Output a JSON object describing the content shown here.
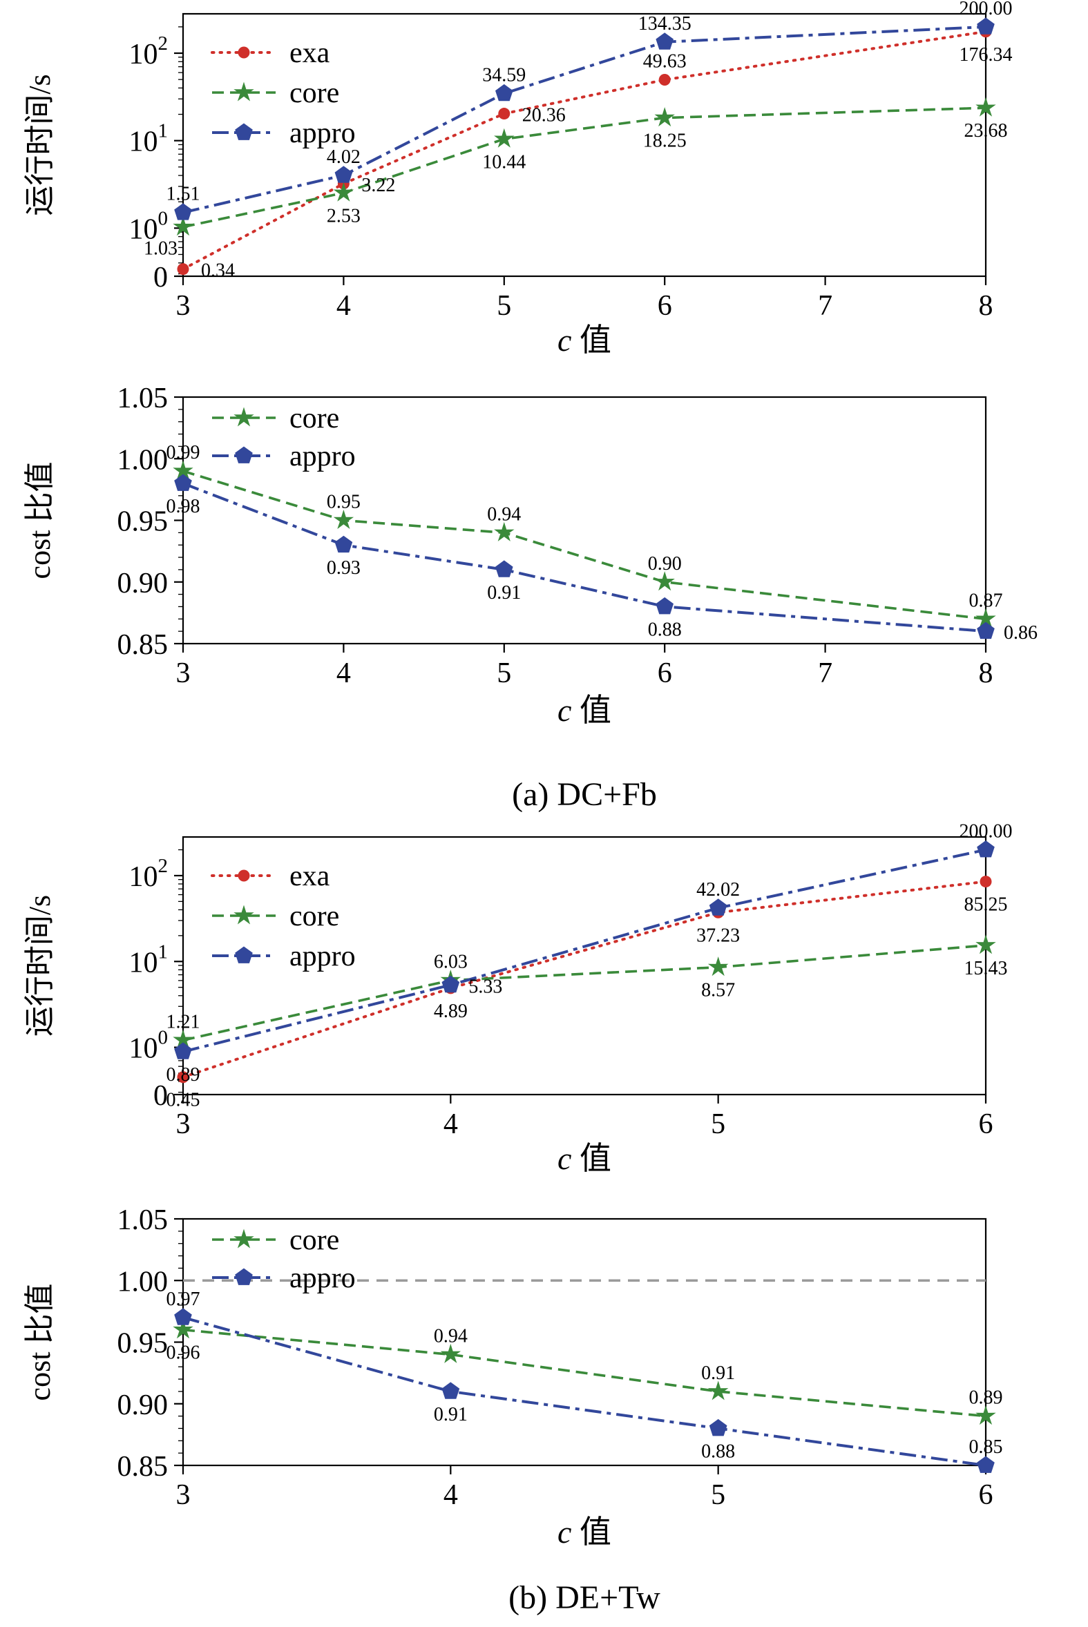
{
  "captions": {
    "a": "(a) DC+Fb",
    "b": "(b) DE+Tw"
  },
  "colors": {
    "exa": "#cf2f2a",
    "core": "#3a8a3a",
    "appro": "#32479b",
    "baseline": "#9a9a9a",
    "axis": "#000000"
  },
  "chart_data": [
    {
      "id": "a-runtime",
      "type": "line",
      "xlabel": "c 值",
      "ylabel": "运行时间/s",
      "x": [
        3,
        4,
        5,
        6,
        8
      ],
      "xlim": [
        3,
        8
      ],
      "xticks": [
        3,
        4,
        5,
        6,
        7,
        8
      ],
      "yscale": "log",
      "ylog_lim": [
        -0.55,
        2.45
      ],
      "yticks_log": [
        {
          "t": -0.55,
          "label": "0"
        },
        {
          "t": 0,
          "label": "10^0"
        },
        {
          "t": 1,
          "label": "10^1"
        },
        {
          "t": 2,
          "label": "10^2"
        }
      ],
      "legend": [
        "exa",
        "core",
        "appro"
      ],
      "legend_position": "top-left",
      "grid": false,
      "series": [
        {
          "name": "exa",
          "values": [
            0.34,
            3.22,
            20.36,
            49.63,
            176.34
          ],
          "label_pos": [
            "right",
            "right",
            "right",
            "above",
            "below"
          ]
        },
        {
          "name": "core",
          "values": [
            1.03,
            2.53,
            10.44,
            18.25,
            23.68
          ],
          "label_pos": [
            "below-left",
            "below",
            "below",
            "below",
            "below"
          ]
        },
        {
          "name": "appro",
          "values": [
            1.51,
            4.02,
            34.59,
            134.35,
            200.0
          ],
          "label_pos": [
            "above",
            "above",
            "above",
            "above",
            "above"
          ]
        }
      ]
    },
    {
      "id": "a-cost",
      "type": "line",
      "xlabel": "c 值",
      "ylabel": "cost 比值",
      "x": [
        3,
        4,
        5,
        6,
        8
      ],
      "xlim": [
        3,
        8
      ],
      "xticks": [
        3,
        4,
        5,
        6,
        7,
        8
      ],
      "yscale": "linear",
      "ylim": [
        0.85,
        1.05
      ],
      "yticks": [
        1.05,
        1.0,
        0.95,
        0.9,
        0.85
      ],
      "legend": [
        "core",
        "appro"
      ],
      "legend_position": "top-left",
      "grid": false,
      "series": [
        {
          "name": "core",
          "values": [
            0.99,
            0.95,
            0.94,
            0.9,
            0.87
          ],
          "label_pos": [
            "above",
            "above",
            "above",
            "above",
            "above"
          ]
        },
        {
          "name": "appro",
          "values": [
            0.98,
            0.93,
            0.91,
            0.88,
            0.86
          ],
          "label_pos": [
            "below",
            "below",
            "below",
            "below",
            "right"
          ]
        }
      ]
    },
    {
      "id": "b-runtime",
      "type": "line",
      "xlabel": "c 值",
      "ylabel": "运行时间/s",
      "x": [
        3,
        4,
        5,
        6
      ],
      "xlim": [
        3,
        6
      ],
      "xticks": [
        3,
        4,
        5,
        6
      ],
      "yscale": "log",
      "ylog_lim": [
        -0.55,
        2.45
      ],
      "yticks_log": [
        {
          "t": -0.55,
          "label": "0"
        },
        {
          "t": 0,
          "label": "10^0"
        },
        {
          "t": 1,
          "label": "10^1"
        },
        {
          "t": 2,
          "label": "10^2"
        }
      ],
      "legend": [
        "exa",
        "core",
        "appro"
      ],
      "legend_position": "top-left",
      "grid": false,
      "series": [
        {
          "name": "exa",
          "values": [
            0.45,
            4.89,
            37.23,
            85.25
          ],
          "label_pos": [
            "below",
            "below",
            "below",
            "below"
          ]
        },
        {
          "name": "core",
          "values": [
            1.21,
            6.03,
            8.57,
            15.43
          ],
          "label_pos": [
            "above",
            "above",
            "below",
            "below"
          ]
        },
        {
          "name": "appro",
          "values": [
            0.89,
            5.33,
            42.02,
            200.0
          ],
          "label_pos": [
            "below",
            "right",
            "above",
            "above"
          ]
        }
      ]
    },
    {
      "id": "b-cost",
      "type": "line",
      "xlabel": "c 值",
      "ylabel": "cost 比值",
      "x": [
        3,
        4,
        5,
        6
      ],
      "xlim": [
        3,
        6
      ],
      "xticks": [
        3,
        4,
        5,
        6
      ],
      "yscale": "linear",
      "ylim": [
        0.85,
        1.05
      ],
      "yticks": [
        1.05,
        1.0,
        0.95,
        0.9,
        0.85
      ],
      "baseline": 1.0,
      "legend": [
        "core",
        "appro"
      ],
      "legend_position": "top-left",
      "grid": false,
      "series": [
        {
          "name": "core",
          "values": [
            0.96,
            0.94,
            0.91,
            0.89
          ],
          "label_pos": [
            "below",
            "above",
            "above",
            "above"
          ]
        },
        {
          "name": "appro",
          "values": [
            0.97,
            0.91,
            0.88,
            0.85
          ],
          "label_pos": [
            "above",
            "below",
            "below",
            "above"
          ]
        }
      ]
    }
  ]
}
